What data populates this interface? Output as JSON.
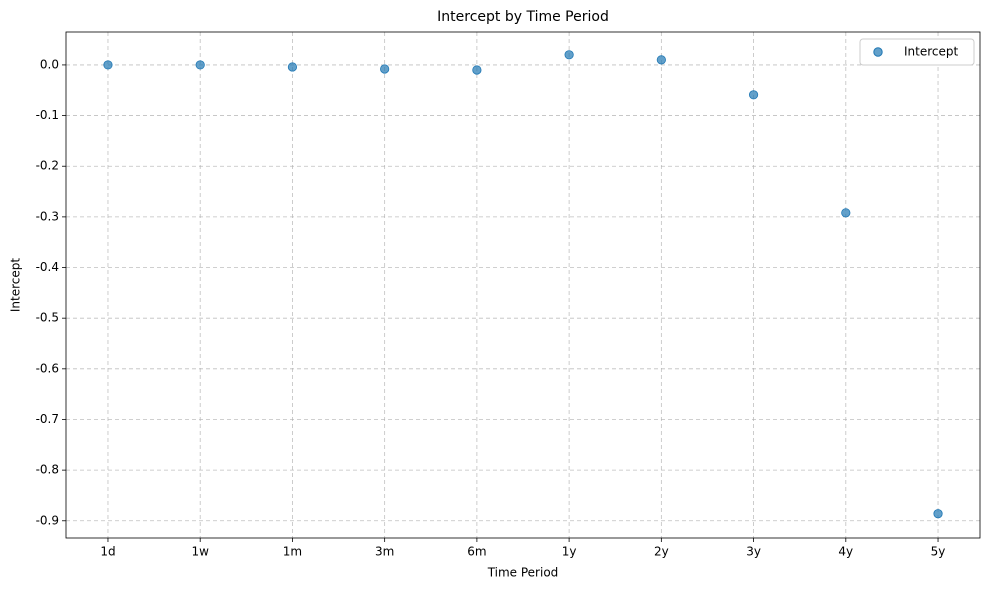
{
  "chart_data": {
    "type": "scatter",
    "title": "Intercept by Time Period",
    "x_label": "Time Period",
    "y_label": "Intercept",
    "categories": [
      "1d",
      "1w",
      "1m",
      "3m",
      "6m",
      "1y",
      "2y",
      "3y",
      "4y",
      "5y"
    ],
    "series": [
      {
        "name": "Intercept",
        "color": "#1f77b4",
        "values": [
          0.0,
          0.0,
          -0.004,
          -0.008,
          -0.01,
          0.02,
          0.01,
          -0.059,
          -0.292,
          -0.886
        ]
      }
    ],
    "ylim": [
      -0.934,
      0.065
    ],
    "yticks": [
      {
        "value": 0.0,
        "label": "0.0"
      },
      {
        "value": -0.1,
        "label": "-0.1"
      },
      {
        "value": -0.2,
        "label": "-0.2"
      },
      {
        "value": -0.3,
        "label": "-0.3"
      },
      {
        "value": -0.4,
        "label": "-0.4"
      },
      {
        "value": -0.5,
        "label": "-0.5"
      },
      {
        "value": -0.6,
        "label": "-0.6"
      },
      {
        "value": -0.7,
        "label": "-0.7"
      },
      {
        "value": -0.8,
        "label": "-0.8"
      },
      {
        "value": -0.9,
        "label": "-0.9"
      }
    ],
    "grid": true,
    "legend": "upper right"
  }
}
